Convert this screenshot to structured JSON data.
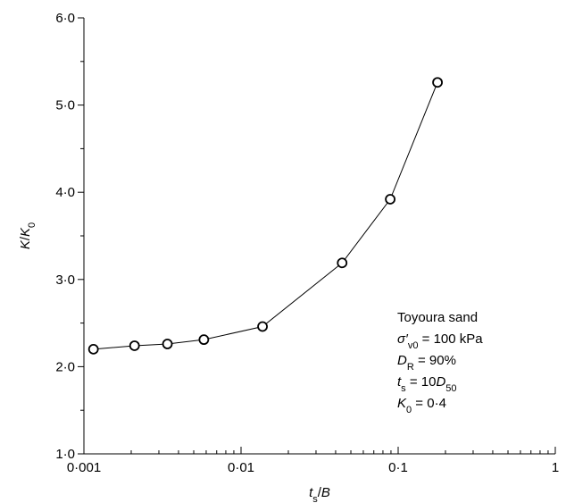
{
  "chart_data": {
    "type": "line",
    "x_label": [
      {
        "text": "t",
        "italic": true
      },
      {
        "text": "s",
        "sub": true
      },
      {
        "text": "/"
      },
      {
        "text": "B",
        "italic": true
      }
    ],
    "y_label": [
      {
        "text": "K",
        "italic": true
      },
      {
        "text": "/"
      },
      {
        "text": "K",
        "italic": true
      },
      {
        "text": "0",
        "sub": true
      }
    ],
    "x": [
      0.00115,
      0.0021,
      0.0034,
      0.0058,
      0.0137,
      0.044,
      0.089,
      0.178
    ],
    "series": [
      {
        "color": "#000000",
        "values": [
          2.2,
          2.24,
          2.26,
          2.31,
          2.46,
          3.19,
          3.92,
          5.26
        ]
      }
    ],
    "xlim": [
      0.001,
      1
    ],
    "xscale": "log",
    "xticks": [
      {
        "value": 0.001,
        "label": "0·001"
      },
      {
        "value": 0.01,
        "label": "0·01"
      },
      {
        "value": 0.1,
        "label": "0·1"
      },
      1
    ],
    "ylim": [
      1,
      6
    ],
    "yticks": [
      {
        "value": 1,
        "label": "1·0"
      },
      {
        "value": 2,
        "label": "2·0"
      },
      {
        "value": 3,
        "label": "3·0"
      },
      {
        "value": 4,
        "label": "4·0"
      },
      {
        "value": 5,
        "label": "5·0"
      },
      {
        "value": 6,
        "label": "6·0"
      }
    ],
    "annotation": [
      [
        {
          "text": "Toyoura sand"
        }
      ],
      [
        {
          "text": "σ′",
          "italic": true
        },
        {
          "text": "v0",
          "sub": true
        },
        {
          "text": " = 100 kPa"
        }
      ],
      [
        {
          "text": "D",
          "italic": true
        },
        {
          "text": "R",
          "sub": true
        },
        {
          "text": " = 90%"
        }
      ],
      [
        {
          "text": "t",
          "italic": true
        },
        {
          "text": "s",
          "sub": true
        },
        {
          "text": " = 10"
        },
        {
          "text": "D",
          "italic": true
        },
        {
          "text": "50",
          "sub": true
        }
      ],
      [
        {
          "text": "K",
          "italic": true
        },
        {
          "text": "0",
          "sub": true
        },
        {
          "text": " = 0·4"
        }
      ]
    ]
  }
}
